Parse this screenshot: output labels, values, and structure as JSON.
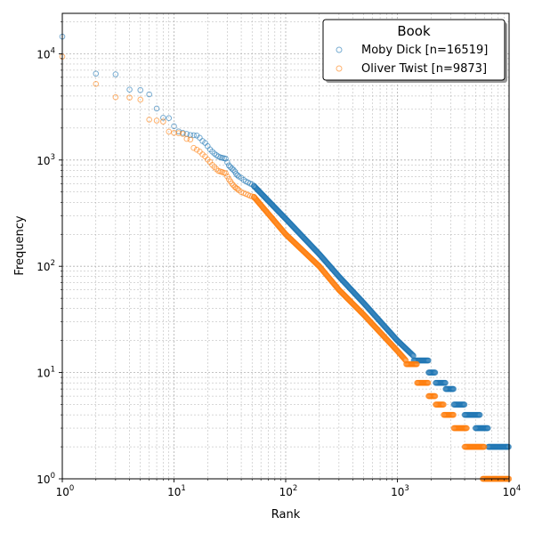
{
  "chart_data": {
    "type": "scatter",
    "title": "",
    "xlabel": "Rank",
    "ylabel": "Frequency",
    "xscale": "log",
    "yscale": "log",
    "xlim": [
      1,
      10000
    ],
    "ylim": [
      1,
      24000
    ],
    "grid": "major and minor",
    "legend": {
      "title": "Book",
      "position": "top-right"
    },
    "x_ticks": [
      {
        "value": 1,
        "base": "10",
        "exp": "0"
      },
      {
        "value": 10,
        "base": "10",
        "exp": "1"
      },
      {
        "value": 100,
        "base": "10",
        "exp": "2"
      },
      {
        "value": 1000,
        "base": "10",
        "exp": "3"
      },
      {
        "value": 10000,
        "base": "10",
        "exp": "4"
      }
    ],
    "y_ticks": [
      {
        "value": 1,
        "base": "10",
        "exp": "0"
      },
      {
        "value": 10,
        "base": "10",
        "exp": "1"
      },
      {
        "value": 100,
        "base": "10",
        "exp": "2"
      },
      {
        "value": 1000,
        "base": "10",
        "exp": "3"
      },
      {
        "value": 10000,
        "base": "10",
        "exp": "4"
      }
    ],
    "series": [
      {
        "name": "Moby Dick [n=16519]",
        "color": "#1f77b4",
        "points": [
          [
            1,
            14500
          ],
          [
            2,
            6500
          ],
          [
            3,
            6400
          ],
          [
            4,
            4600
          ],
          [
            5,
            4550
          ],
          [
            6,
            4150
          ],
          [
            7,
            3050
          ],
          [
            8,
            2500
          ],
          [
            9,
            2480
          ],
          [
            10,
            2080
          ],
          [
            11,
            1860
          ],
          [
            12,
            1800
          ],
          [
            13,
            1760
          ],
          [
            14,
            1720
          ],
          [
            15,
            1710
          ],
          [
            16,
            1700
          ],
          [
            17,
            1620
          ],
          [
            18,
            1510
          ],
          [
            19,
            1450
          ],
          [
            20,
            1350
          ],
          [
            21,
            1260
          ],
          [
            22,
            1200
          ],
          [
            23,
            1150
          ],
          [
            24,
            1110
          ],
          [
            25,
            1080
          ],
          [
            26,
            1060
          ],
          [
            27,
            1050
          ],
          [
            28,
            1040
          ],
          [
            29,
            1030
          ],
          [
            30,
            950
          ],
          [
            31,
            890
          ],
          [
            32,
            860
          ],
          [
            33,
            830
          ],
          [
            34,
            810
          ],
          [
            35,
            780
          ],
          [
            36,
            740
          ],
          [
            37,
            720
          ],
          [
            38,
            700
          ],
          [
            40,
            680
          ],
          [
            42,
            650
          ],
          [
            44,
            630
          ],
          [
            46,
            615
          ],
          [
            48,
            600
          ],
          [
            50,
            590
          ],
          [
            52,
            570
          ]
        ],
        "tail": [
          [
            52,
            570
          ],
          [
            100,
            280
          ],
          [
            200,
            130
          ],
          [
            300,
            80
          ],
          [
            500,
            45
          ],
          [
            1000,
            20
          ],
          [
            2000,
            10
          ],
          [
            5000,
            3.5
          ],
          [
            10000,
            2
          ]
        ],
        "steps": [
          [
            1400,
            1900,
            13
          ],
          [
            1900,
            2200,
            10
          ],
          [
            2200,
            2700,
            8
          ],
          [
            2700,
            3200,
            7
          ],
          [
            3200,
            4000,
            5
          ],
          [
            4000,
            5500,
            4
          ],
          [
            5000,
            6500,
            3
          ],
          [
            6500,
            10000,
            2
          ]
        ]
      },
      {
        "name": "Oliver Twist [n=9873]",
        "color": "#ff7f0e",
        "points": [
          [
            1,
            9400
          ],
          [
            2,
            5200
          ],
          [
            3,
            3900
          ],
          [
            4,
            3870
          ],
          [
            5,
            3700
          ],
          [
            6,
            2400
          ],
          [
            7,
            2350
          ],
          [
            8,
            2300
          ],
          [
            9,
            1850
          ],
          [
            10,
            1800
          ],
          [
            11,
            1790
          ],
          [
            12,
            1760
          ],
          [
            13,
            1580
          ],
          [
            14,
            1560
          ],
          [
            15,
            1300
          ],
          [
            16,
            1250
          ],
          [
            17,
            1200
          ],
          [
            18,
            1130
          ],
          [
            19,
            1080
          ],
          [
            20,
            1010
          ],
          [
            21,
            960
          ],
          [
            22,
            900
          ],
          [
            23,
            860
          ],
          [
            24,
            820
          ],
          [
            25,
            790
          ],
          [
            26,
            780
          ],
          [
            27,
            770
          ],
          [
            28,
            760
          ],
          [
            29,
            750
          ],
          [
            30,
            700
          ],
          [
            31,
            660
          ],
          [
            32,
            630
          ],
          [
            33,
            600
          ],
          [
            34,
            580
          ],
          [
            35,
            560
          ],
          [
            36,
            545
          ],
          [
            37,
            535
          ],
          [
            38,
            520
          ],
          [
            40,
            500
          ],
          [
            42,
            490
          ],
          [
            44,
            480
          ],
          [
            46,
            470
          ],
          [
            48,
            460
          ],
          [
            50,
            455
          ],
          [
            52,
            450
          ]
        ],
        "tail": [
          [
            52,
            450
          ],
          [
            100,
            200
          ],
          [
            200,
            100
          ],
          [
            300,
            60
          ],
          [
            500,
            35
          ],
          [
            1000,
            16
          ],
          [
            2000,
            7
          ],
          [
            5000,
            2.2
          ],
          [
            6000,
            1.5
          ],
          [
            10000,
            1
          ]
        ],
        "steps": [
          [
            1200,
            1500,
            12
          ],
          [
            1500,
            1900,
            8
          ],
          [
            1900,
            2200,
            6
          ],
          [
            2200,
            2600,
            5
          ],
          [
            2600,
            3200,
            4
          ],
          [
            3200,
            4200,
            3
          ],
          [
            4000,
            6000,
            2
          ],
          [
            5800,
            10000,
            1
          ]
        ]
      }
    ]
  }
}
